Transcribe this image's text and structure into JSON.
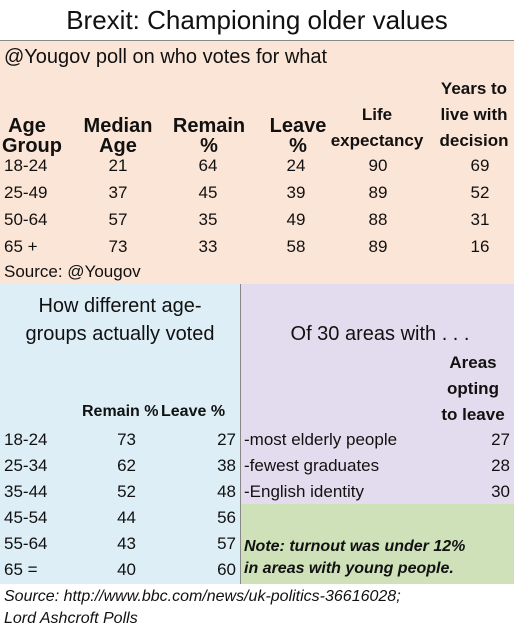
{
  "title": "Brexit: Championing older values",
  "poll": {
    "caption": "@Yougov poll on who votes for what",
    "headers": {
      "age_group": [
        "Age",
        "Group"
      ],
      "median_age": [
        "Median",
        "Age"
      ],
      "remain": [
        "Remain",
        "%"
      ],
      "leave": [
        "Leave",
        "%"
      ],
      "life_expectancy": [
        "Life",
        "expectancy"
      ],
      "years_to_live": [
        "Years to",
        "live with",
        "decision"
      ]
    },
    "rows": [
      {
        "age": "18-24",
        "median": "21",
        "remain": "64",
        "leave": "24",
        "life": "90",
        "years": "69"
      },
      {
        "age": "25-49",
        "median": "37",
        "remain": "45",
        "leave": "39",
        "life": "89",
        "years": "52"
      },
      {
        "age": "50-64",
        "median": "57",
        "remain": "35",
        "leave": "49",
        "life": "88",
        "years": "31"
      },
      {
        "age": "65 +",
        "median": "73",
        "remain": "33",
        "leave": "58",
        "life": "89",
        "years": "16"
      }
    ],
    "source": "Source: @Yougov"
  },
  "actual": {
    "title": [
      "How different age-",
      "groups actually voted"
    ],
    "headers": {
      "remain": "Remain %",
      "leave": "Leave %"
    },
    "rows": [
      {
        "age": "18-24",
        "remain": "73",
        "leave": "27"
      },
      {
        "age": "25-34",
        "remain": "62",
        "leave": "38"
      },
      {
        "age": "35-44",
        "remain": "52",
        "leave": "48"
      },
      {
        "age": "45-54",
        "remain": "44",
        "leave": "56"
      },
      {
        "age": "55-64",
        "remain": "43",
        "leave": "57"
      },
      {
        "age": "65 =",
        "remain": "40",
        "leave": "60"
      }
    ]
  },
  "areas": {
    "title": "Of 30 areas with  . . .",
    "header": [
      "Areas",
      "opting",
      "to leave"
    ],
    "rows": [
      {
        "label": "-most elderly people",
        "value": "27"
      },
      {
        "label": "-fewest graduates",
        "value": "28"
      },
      {
        "label": "-English identity",
        "value": "30"
      }
    ]
  },
  "note": [
    "Note: turnout was under 12%",
    "in areas with young people."
  ],
  "footer": [
    "Source: http://www.bbc.com/news/uk-politics-36616028;",
    "Lord Ashcroft Polls"
  ],
  "colors": {
    "peach": "#fbe5d6",
    "blue": "#ddeef6",
    "purple": "#e3dcee",
    "green": "#cfe1b9"
  }
}
